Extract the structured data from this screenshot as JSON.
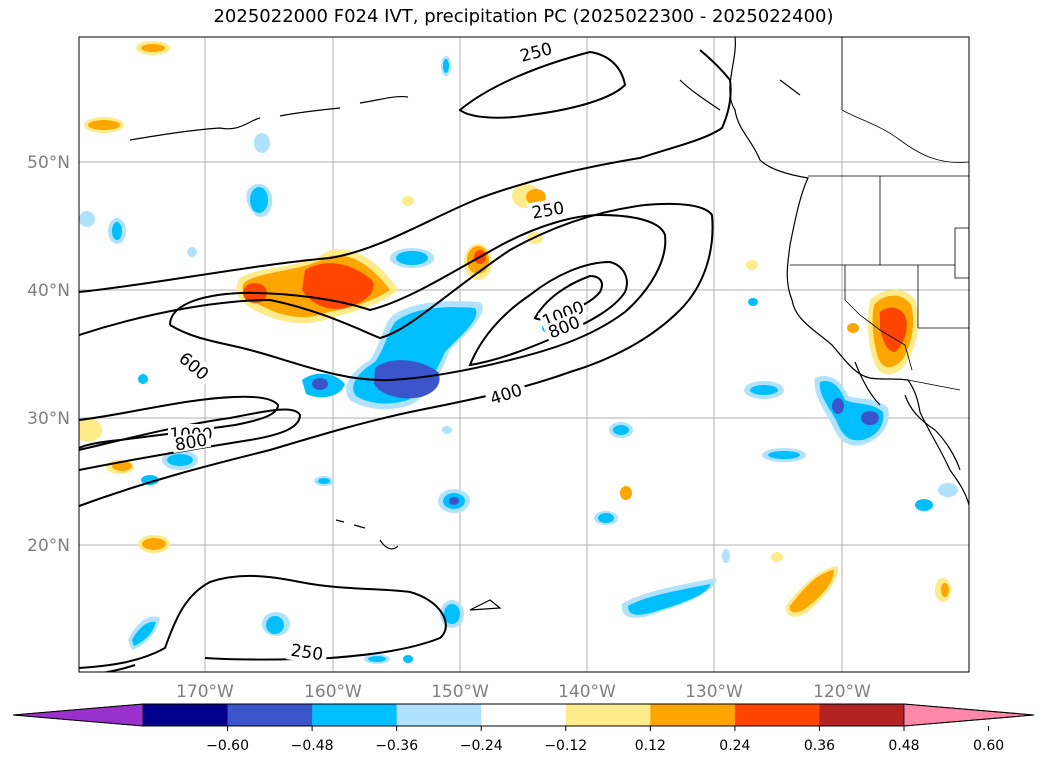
{
  "title": "2025022000 F024 IVT, precipitation PC (2025022300 - 2025022400)",
  "latitude_labels": [
    "50°N",
    "40°N",
    "30°N",
    "20°N"
  ],
  "longitude_labels": [
    "170°W",
    "160°W",
    "150°W",
    "140°W",
    "130°W",
    "120°W"
  ],
  "ivt_contour_labels": [
    "250",
    "250",
    "600",
    "1000",
    "800",
    "1000",
    "800",
    "400",
    "250"
  ],
  "colorbar": {
    "tick_labels": [
      "−0.60",
      "−0.48",
      "−0.36",
      "−0.24",
      "−0.12",
      "0.12",
      "0.24",
      "0.36",
      "0.48",
      "0.60"
    ],
    "colors": [
      "#9932cc",
      "#00008b",
      "#3a55cc",
      "#00bfff",
      "#b0e2ff",
      "#ffffff",
      "#ffeb8a",
      "#ffa500",
      "#ff4500",
      "#b22222",
      "#ff88aa"
    ]
  }
}
